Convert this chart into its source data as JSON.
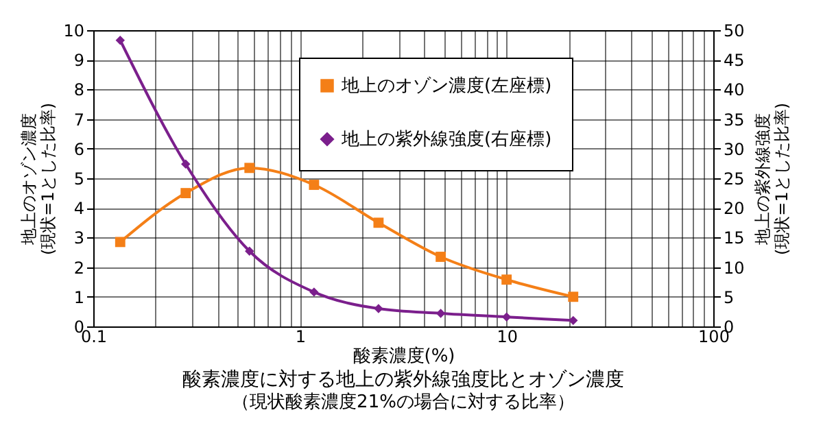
{
  "chart_data": {
    "type": "line",
    "title": "酸素濃度に対する地上の紫外線強度比とオゾン濃度",
    "subtitle": "（現状酸素濃度21%の場合に対する比率）",
    "xlabel": "酸素濃度(%)",
    "ylabel": "地上のオゾン濃度\n(現状=1とした比率)",
    "y2label": "地上の紫外線強度\n(現状=1とした比率)",
    "x": [
      0.135,
      0.28,
      0.57,
      1.17,
      2.4,
      4.8,
      10,
      21
    ],
    "series": [
      {
        "name": "地上のオゾン濃度(左座標)",
        "color": "#f47f17",
        "marker": "square",
        "values": [
          2.85,
          4.5,
          5.35,
          4.78,
          3.5,
          2.35,
          1.58,
          1.0
        ]
      },
      {
        "name": "地上の紫外線強度(右座標)",
        "color": "#7b1f8c",
        "marker": "diamond",
        "axis": "y2",
        "values": [
          48.3,
          27.4,
          12.7,
          5.8,
          3.0,
          2.2,
          1.6,
          1.0
        ]
      }
    ],
    "log": "x",
    "xlim": [
      0.1,
      100
    ],
    "xticks": [
      0.1,
      {
        "value": 0.2,
        "label": null
      },
      {
        "value": 0.3,
        "label": null
      },
      {
        "value": 0.4,
        "label": null
      },
      {
        "value": 0.5,
        "label": null
      },
      {
        "value": 0.6,
        "label": null
      },
      {
        "value": 0.7,
        "label": null
      },
      {
        "value": 0.8,
        "label": null
      },
      {
        "value": 0.9,
        "label": null
      },
      1,
      {
        "value": 2,
        "label": null
      },
      {
        "value": 3,
        "label": null
      },
      {
        "value": 4,
        "label": null
      },
      {
        "value": 5,
        "label": null
      },
      {
        "value": 6,
        "label": null
      },
      {
        "value": 7,
        "label": null
      },
      {
        "value": 8,
        "label": null
      },
      {
        "value": 9,
        "label": null
      },
      10,
      {
        "value": 20,
        "label": null
      },
      {
        "value": 30,
        "label": null
      },
      {
        "value": 40,
        "label": null
      },
      {
        "value": 50,
        "label": null
      },
      {
        "value": 60,
        "label": null
      },
      {
        "value": 70,
        "label": null
      },
      {
        "value": 80,
        "label": null
      },
      {
        "value": 90,
        "label": null
      },
      100
    ],
    "ylim": [
      0,
      10
    ],
    "yticks": [
      0,
      1,
      2,
      3,
      4,
      5,
      6,
      7,
      8,
      9,
      10
    ],
    "y2lim": [
      0,
      50
    ],
    "y2ticks": [
      0,
      5,
      10,
      15,
      20,
      25,
      30,
      35,
      40,
      45,
      50
    ],
    "grid": true,
    "legend": "top"
  }
}
